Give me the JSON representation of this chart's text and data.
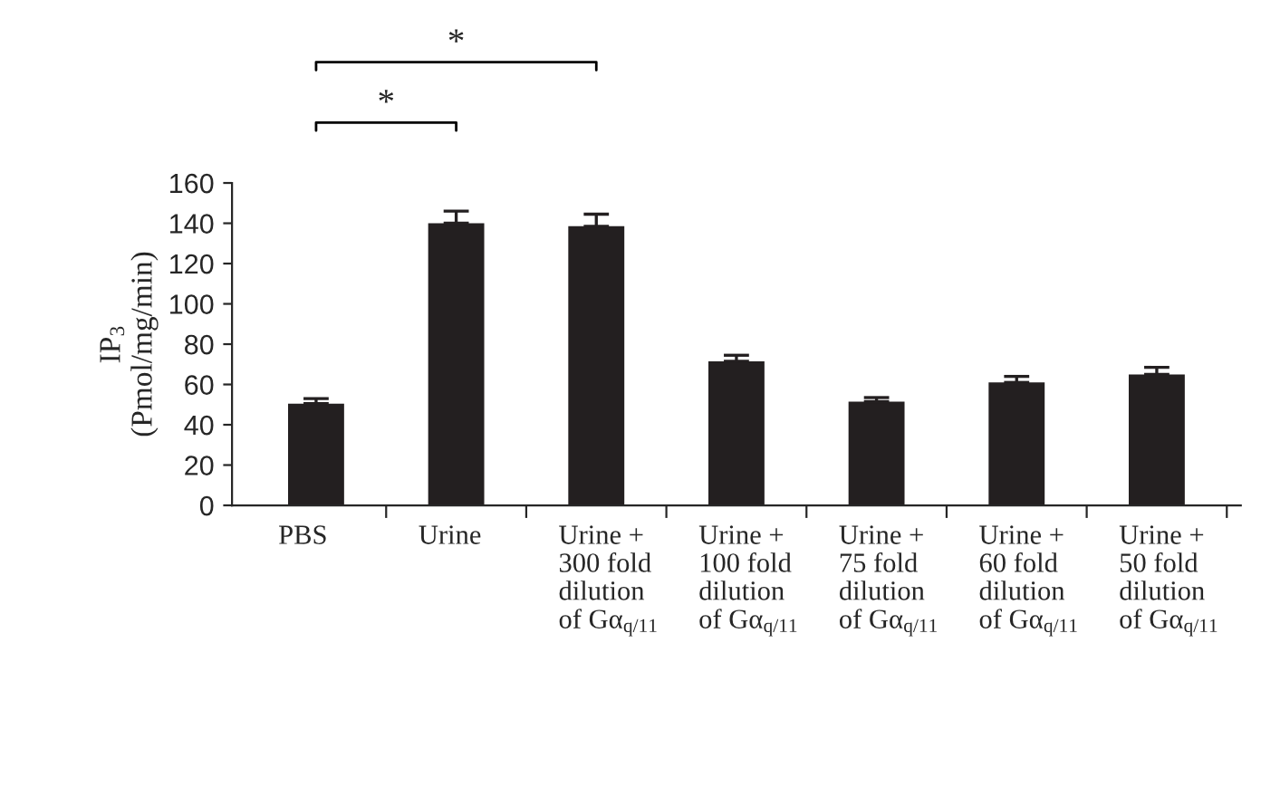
{
  "chart_data": {
    "type": "bar",
    "ylabel": "IP$_{3}$\n(Pmol/mg/min)",
    "categories": [
      "PBS",
      "Urine",
      "Urine +\n300 fold\ndilution\nof Gα$_{q/11}$",
      "Urine +\n100 fold\ndilution\nof Gα$_{q/11}$",
      "Urine +\n75 fold\ndilution\nof Gα$_{q/11}$",
      "Urine +\n60 fold\ndilution\nof Gα$_{q/11}$",
      "Urine +\n50 fold\ndilution\nof Gα$_{q/11}$"
    ],
    "values": [
      50.5,
      140,
      138.5,
      71.5,
      51.5,
      61,
      65
    ],
    "errors": [
      [
        50.5,
        53
      ],
      [
        140,
        146
      ],
      [
        138.5,
        144.5
      ],
      [
        71.5,
        74.5
      ],
      [
        51.5,
        53.5
      ],
      [
        61,
        64
      ],
      [
        65,
        68.5
      ]
    ],
    "color": "#231f20",
    "ylim": [
      0,
      160
    ],
    "yticks": [
      0,
      20,
      40,
      60,
      80,
      100,
      120,
      140,
      160
    ],
    "annotations": [
      "*",
      "*"
    ],
    "grid": false
  }
}
